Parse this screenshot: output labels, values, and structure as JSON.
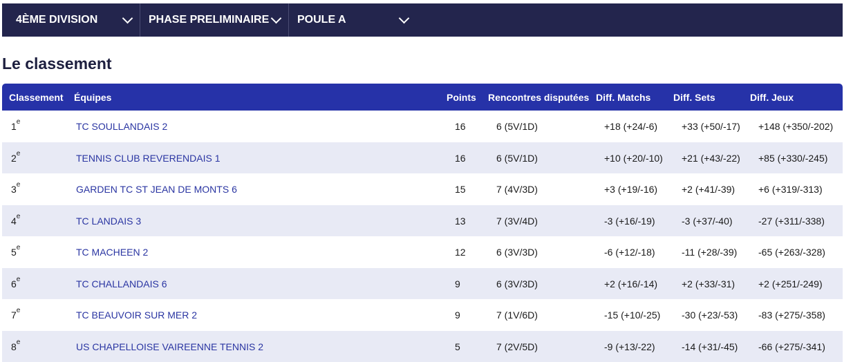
{
  "filters": [
    {
      "label": "4ÈME DIVISION"
    },
    {
      "label": "PHASE PRELIMINAIRE"
    },
    {
      "label": "POULE A"
    }
  ],
  "title": "Le classement",
  "columns": [
    "Classement",
    "Équipes",
    "Points",
    "Rencontres disputées",
    "Diff. Matchs",
    "Diff. Sets",
    "Diff. Jeux"
  ],
  "rows": [
    {
      "rank": "1",
      "sup": "e",
      "team": "TC SOULLANDAIS 2",
      "points": "16",
      "played": "6 (5V/1D)",
      "matchs": "+18 (+24/-6)",
      "sets": "+33 (+50/-17)",
      "jeux": "+148 (+350/-202)"
    },
    {
      "rank": "2",
      "sup": "e",
      "team": "TENNIS CLUB REVERENDAIS 1",
      "points": "16",
      "played": "6 (5V/1D)",
      "matchs": "+10 (+20/-10)",
      "sets": "+21 (+43/-22)",
      "jeux": "+85 (+330/-245)"
    },
    {
      "rank": "3",
      "sup": "e",
      "team": "GARDEN TC ST JEAN DE MONTS 6",
      "points": "15",
      "played": "7 (4V/3D)",
      "matchs": "+3 (+19/-16)",
      "sets": "+2 (+41/-39)",
      "jeux": "+6 (+319/-313)"
    },
    {
      "rank": "4",
      "sup": "e",
      "team": "TC LANDAIS 3",
      "points": "13",
      "played": "7 (3V/4D)",
      "matchs": "-3 (+16/-19)",
      "sets": "-3 (+37/-40)",
      "jeux": "-27 (+311/-338)"
    },
    {
      "rank": "5",
      "sup": "e",
      "team": "TC MACHEEN 2",
      "points": "12",
      "played": "6 (3V/3D)",
      "matchs": "-6 (+12/-18)",
      "sets": "-11 (+28/-39)",
      "jeux": "-65 (+263/-328)"
    },
    {
      "rank": "6",
      "sup": "e",
      "team": "TC CHALLANDAIS 6",
      "points": "9",
      "played": "6 (3V/3D)",
      "matchs": "+2 (+16/-14)",
      "sets": "+2 (+33/-31)",
      "jeux": "+2 (+251/-249)"
    },
    {
      "rank": "7",
      "sup": "e",
      "team": "TC BEAUVOIR SUR MER 2",
      "points": "9",
      "played": "7 (1V/6D)",
      "matchs": "-15 (+10/-25)",
      "sets": "-30 (+23/-53)",
      "jeux": "-83 (+275/-358)"
    },
    {
      "rank": "8",
      "sup": "e",
      "team": "US CHAPELLOISE VAIREENNE TENNIS 2",
      "points": "5",
      "played": "7 (2V/5D)",
      "matchs": "-9 (+13/-22)",
      "sets": "-14 (+31/-45)",
      "jeux": "-66 (+275/-341)"
    }
  ]
}
